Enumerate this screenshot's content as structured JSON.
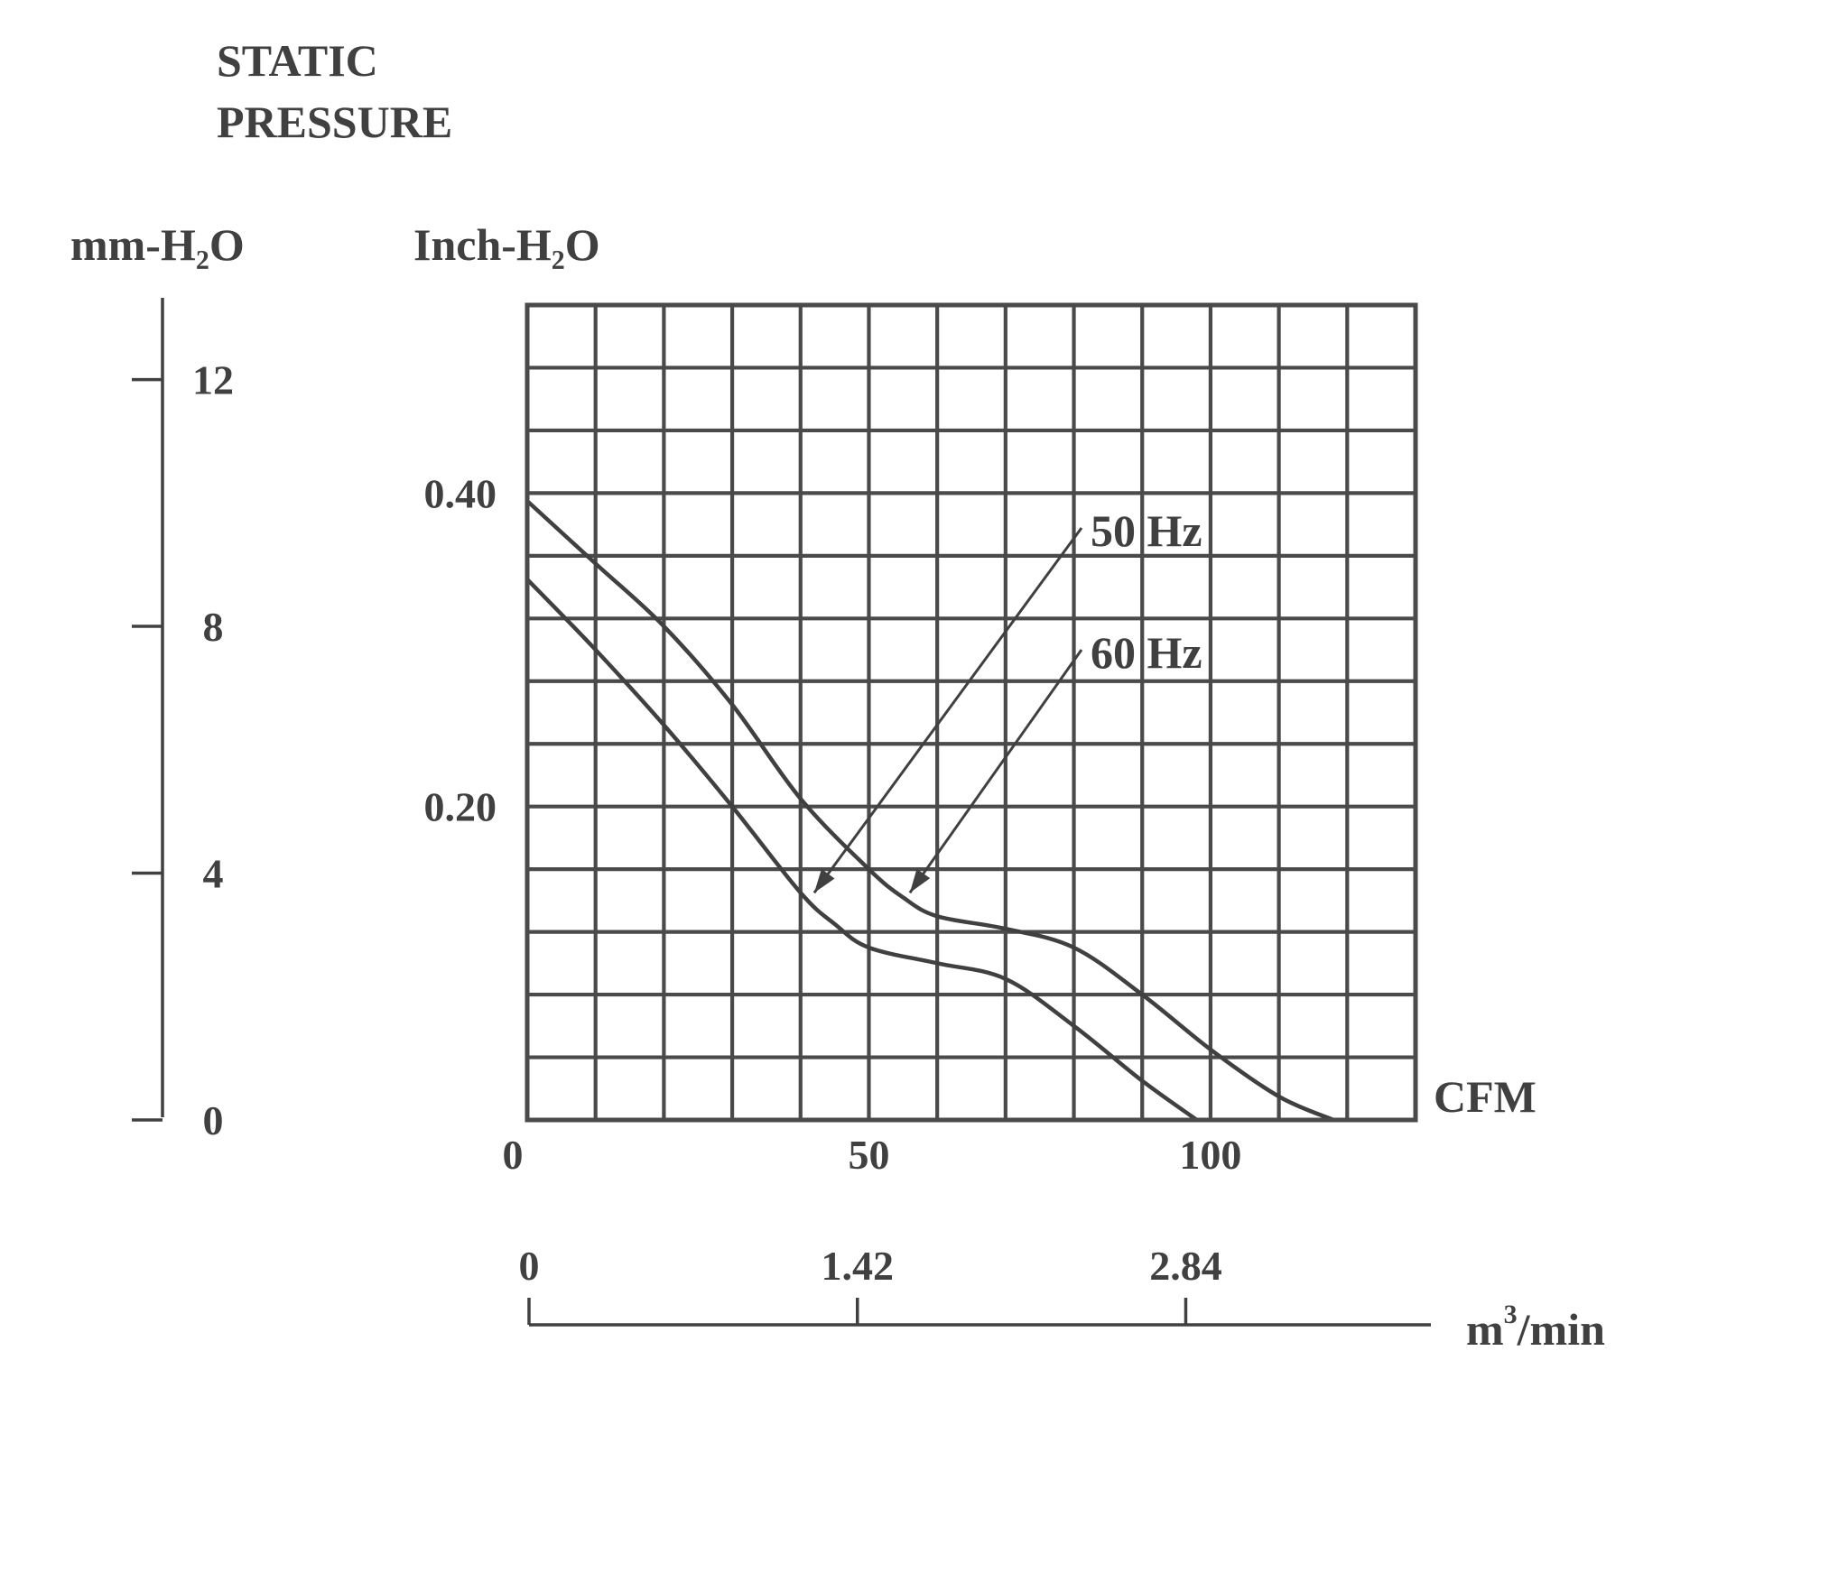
{
  "chart_data": {
    "type": "line",
    "title_lines": [
      "STATIC",
      "PRESSURE"
    ],
    "y_left": {
      "unit": "mm-H₂O",
      "ticks": [
        0,
        4,
        8,
        12
      ],
      "tick_labels": [
        "0",
        "4",
        "8",
        "12"
      ],
      "range": [
        0,
        13
      ]
    },
    "y_main": {
      "unit": "Inch-H₂O",
      "ticks": [
        0.2,
        0.4
      ],
      "tick_labels": [
        "0.20",
        "0.40"
      ],
      "range": [
        0,
        0.52
      ],
      "grid_step": 0.04
    },
    "x_main": {
      "unit": "CFM",
      "ticks": [
        0,
        50,
        100
      ],
      "tick_labels": [
        "0",
        "50",
        "100"
      ],
      "range": [
        0,
        130
      ],
      "grid_step": 10
    },
    "x_secondary": {
      "unit": "m",
      "unit_sup": "3",
      "unit_suffix": "/min",
      "ticks": [
        0,
        1.42,
        2.84
      ],
      "tick_labels": [
        "0",
        "1.42",
        "2.84"
      ],
      "range": [
        0,
        3.9
      ]
    },
    "grid": true,
    "series": [
      {
        "name": "50 Hz",
        "x": [
          0,
          10,
          20,
          30,
          40,
          45,
          50,
          60,
          70,
          80,
          90,
          98
        ],
        "y": [
          0.345,
          0.3,
          0.252,
          0.2,
          0.145,
          0.125,
          0.11,
          0.1,
          0.09,
          0.06,
          0.025,
          0
        ]
      },
      {
        "name": "60 Hz",
        "x": [
          0,
          10,
          20,
          30,
          40,
          50,
          55,
          60,
          70,
          80,
          90,
          100,
          110,
          118
        ],
        "y": [
          0.395,
          0.355,
          0.315,
          0.265,
          0.205,
          0.16,
          0.142,
          0.13,
          0.122,
          0.11,
          0.08,
          0.045,
          0.015,
          0
        ]
      }
    ]
  }
}
